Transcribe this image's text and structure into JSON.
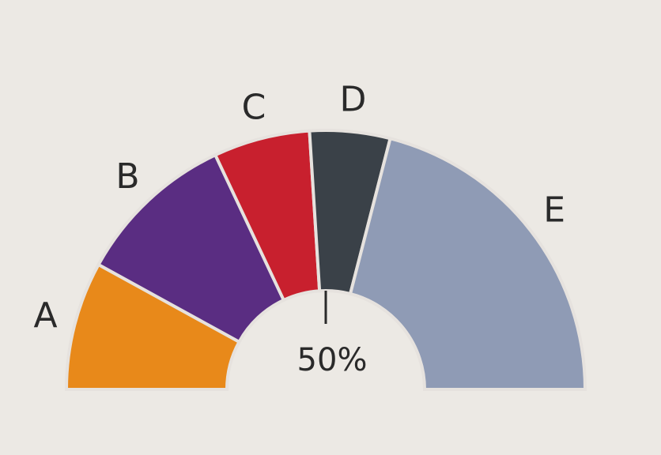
{
  "chart_data": {
    "type": "semi-donut",
    "categories": [
      "A",
      "B",
      "C",
      "D",
      "E"
    ],
    "values": [
      16,
      20,
      12,
      10,
      42
    ],
    "colors": [
      "#e8891a",
      "#5a2d82",
      "#c8202e",
      "#3a4148",
      "#8f9bb5"
    ],
    "marker": {
      "value": 50,
      "label": "50%"
    }
  }
}
